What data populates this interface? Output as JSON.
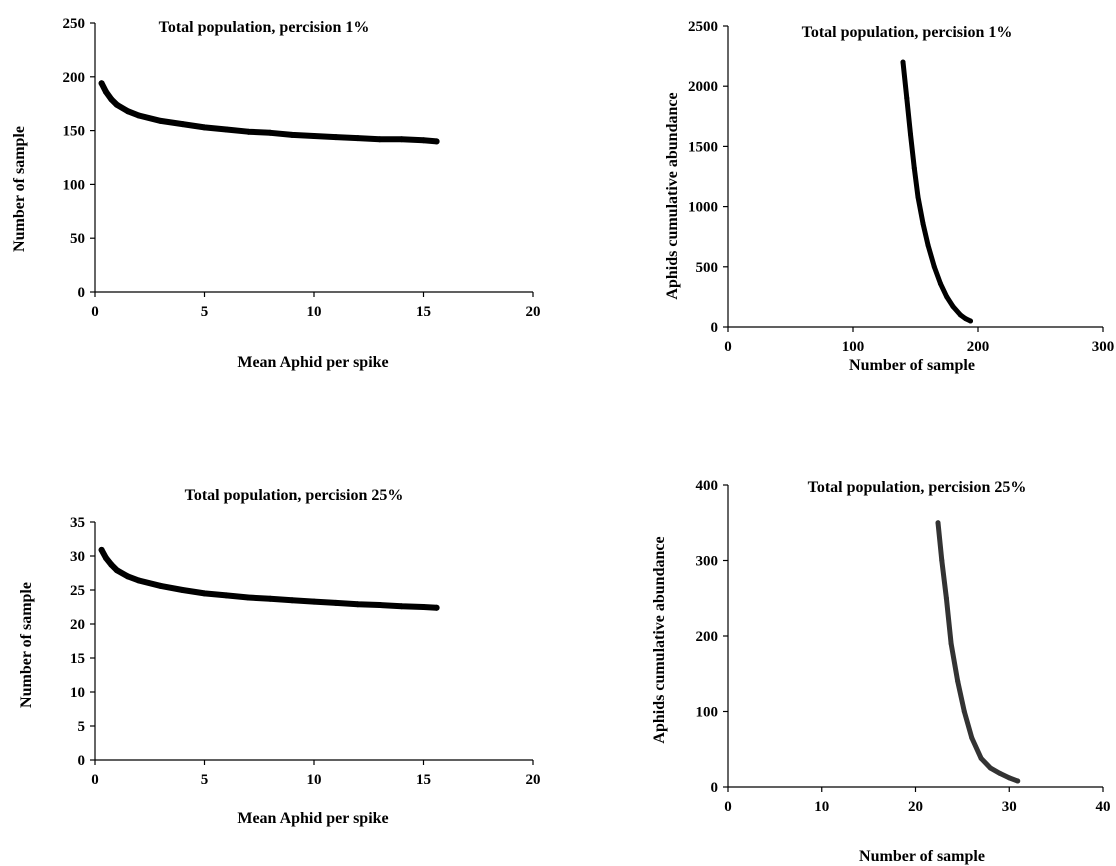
{
  "chart_data": [
    {
      "type": "line",
      "title": "Total population, percision 1%",
      "xlabel": "Mean Aphid per spike",
      "ylabel": "Number of sample",
      "xlim": [
        0,
        20
      ],
      "ylim": [
        0,
        250
      ],
      "xticks": [
        0,
        5,
        10,
        15,
        20
      ],
      "yticks": [
        0,
        50,
        100,
        150,
        200,
        250
      ],
      "grid": false,
      "series": [
        {
          "color": "#000000",
          "x": [
            0.3,
            0.5,
            0.75,
            1,
            1.5,
            2,
            3,
            4,
            5,
            6,
            7,
            8,
            9,
            10,
            11,
            12,
            13,
            14,
            15,
            15.6
          ],
          "y": [
            194,
            186,
            179,
            174,
            168,
            164,
            159,
            156,
            153,
            151,
            149,
            148,
            146,
            145,
            144,
            143,
            142,
            142,
            141,
            140
          ]
        }
      ]
    },
    {
      "type": "line",
      "title": "Total population, percision 1%",
      "xlabel": "Number of sample",
      "ylabel": "Aphids cumulative abundance",
      "xlim": [
        0,
        300
      ],
      "ylim": [
        0,
        2500
      ],
      "xticks": [
        0,
        100,
        200,
        300
      ],
      "yticks": [
        0,
        500,
        1000,
        1500,
        2000,
        2500
      ],
      "grid": false,
      "series": [
        {
          "color": "#000000",
          "x": [
            140,
            143,
            146,
            149,
            152,
            156,
            160,
            165,
            170,
            175,
            180,
            186,
            190,
            194
          ],
          "y": [
            2200,
            1900,
            1600,
            1320,
            1080,
            860,
            680,
            500,
            360,
            250,
            170,
            100,
            70,
            50
          ]
        }
      ]
    },
    {
      "type": "line",
      "title": "Total population, percision 25%",
      "xlabel": "Mean Aphid per spike",
      "ylabel": "Number of sample",
      "xlim": [
        0,
        20
      ],
      "ylim": [
        0,
        35
      ],
      "xticks": [
        0,
        5,
        10,
        15,
        20
      ],
      "yticks": [
        0,
        5,
        10,
        15,
        20,
        25,
        30,
        35
      ],
      "grid": false,
      "series": [
        {
          "color": "#000000",
          "x": [
            0.3,
            0.5,
            0.75,
            1,
            1.5,
            2,
            3,
            4,
            5,
            6,
            7,
            8,
            9,
            10,
            11,
            12,
            13,
            14,
            15,
            15.6
          ],
          "y": [
            30.9,
            29.7,
            28.7,
            27.9,
            27.0,
            26.4,
            25.6,
            25.0,
            24.5,
            24.2,
            23.9,
            23.7,
            23.5,
            23.3,
            23.1,
            22.9,
            22.8,
            22.6,
            22.5,
            22.4
          ]
        }
      ]
    },
    {
      "type": "line",
      "title": "Total population, percision 25%",
      "xlabel": "Number of sample",
      "ylabel": "Aphids cumulative abundance",
      "xlim": [
        0,
        40
      ],
      "ylim": [
        0,
        400
      ],
      "xticks": [
        0,
        10,
        20,
        30,
        40
      ],
      "yticks": [
        0,
        100,
        200,
        300,
        400
      ],
      "grid": false,
      "series": [
        {
          "color": "#333333",
          "x": [
            22.4,
            22.8,
            23.3,
            23.8,
            24.5,
            25.2,
            26.0,
            27.0,
            28.0,
            29.0,
            30.0,
            30.9
          ],
          "y": [
            350,
            300,
            250,
            190,
            140,
            100,
            65,
            38,
            25,
            18,
            12,
            8
          ]
        }
      ]
    }
  ]
}
